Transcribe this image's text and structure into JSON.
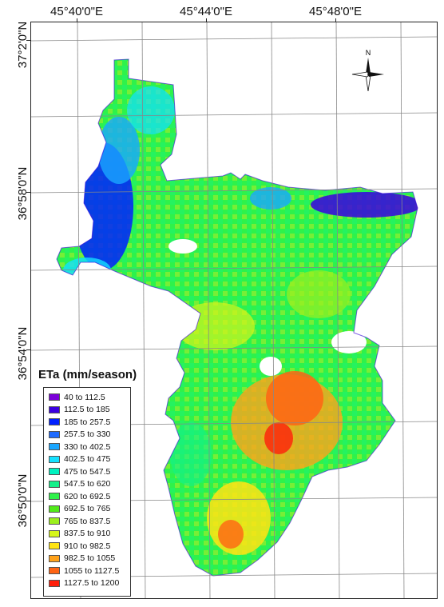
{
  "longitude_labels": [
    "45°40'0\"E",
    "45°44'0\"E",
    "45°48'0\"E"
  ],
  "latitude_labels": [
    "37°2'0\"N",
    "36°58'0\"N",
    "36°54'0\"N",
    "36°50'0\"N"
  ],
  "north_label": "N",
  "legend": {
    "title": "ETa (mm/season)",
    "classes": [
      {
        "label": "40 to 112.5",
        "color": "#7b00d9"
      },
      {
        "label": "112.5 to 185",
        "color": "#3a00e0"
      },
      {
        "label": "185 to 257.5",
        "color": "#0020ff"
      },
      {
        "label": "257.5 to 330",
        "color": "#1f6bff"
      },
      {
        "label": "330 to 402.5",
        "color": "#1aa6ff"
      },
      {
        "label": "402.5 to 475",
        "color": "#14e0ff"
      },
      {
        "label": "475 to 547.5",
        "color": "#00f2c0"
      },
      {
        "label": "547.5 to 620",
        "color": "#14f08a"
      },
      {
        "label": "620 to 692.5",
        "color": "#2ef24a"
      },
      {
        "label": "692.5 to 765",
        "color": "#52ea1a"
      },
      {
        "label": "765 to 837.5",
        "color": "#9cf01e"
      },
      {
        "label": "837.5 to 910",
        "color": "#d6f51a"
      },
      {
        "label": "910 to 982.5",
        "color": "#ffe414"
      },
      {
        "label": "982.5 to 1055",
        "color": "#ffa21a"
      },
      {
        "label": "1055 to 1127.5",
        "color": "#ff6414"
      },
      {
        "label": "1127.5 to 1200",
        "color": "#ff1e0a"
      }
    ]
  }
}
